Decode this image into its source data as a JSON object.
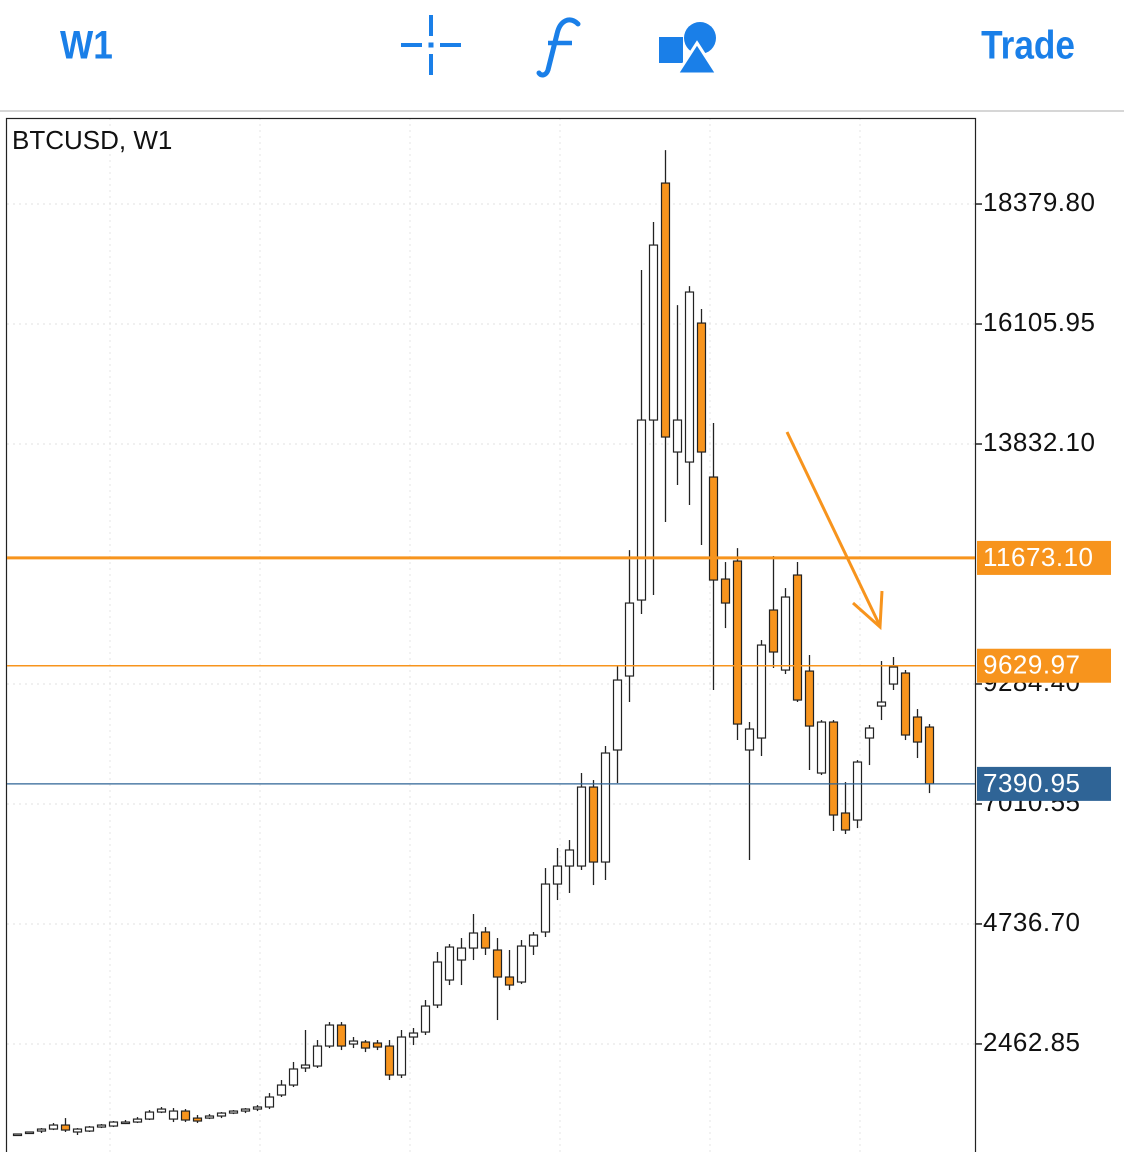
{
  "toolbar": {
    "timeframe": "W1",
    "trade": "Trade"
  },
  "chart_data": {
    "type": "candlestick",
    "title": "BTCUSD, W1",
    "ylim": [
      415,
      20010
    ],
    "yticks": [
      {
        "value": 18379.8,
        "label": "18379.80"
      },
      16105.95,
      {
        "value": 13832.1,
        "label": "13832.10"
      },
      {
        "value": 9284.4,
        "label": "9284.40"
      },
      7010.55,
      {
        "value": 4736.7,
        "label": "4736.70"
      },
      2462.85
    ],
    "grid": true,
    "up_color": "#ffffff",
    "down_color": "#f7941d",
    "open": [
      737,
      775,
      812,
      850,
      926,
      794,
      812,
      888,
      907,
      964,
      983,
      1039,
      1172,
      1039,
      1191,
      1058,
      1058,
      1097,
      1153,
      1191,
      1229,
      1268,
      1495,
      1684,
      2007,
      2044,
      2423,
      2821,
      2461,
      2499,
      2480,
      2423,
      1874,
      2594,
      2688,
      3200,
      3674,
      4053,
      4280,
      4584,
      4243,
      3731,
      3636,
      4318,
      4584,
      5493,
      5834,
      5834,
      7331,
      5910,
      8033,
      9435,
      10875,
      14286,
      18777,
      13680,
      13490,
      16124,
      13206,
      11273,
      11614,
      8033,
      8260,
      10686,
      9548,
      11349,
      9529,
      7597,
      8563,
      6839,
      6706,
      8260,
      8866,
      9283,
      9492,
      8658,
      8468
    ],
    "high": [
      756,
      794,
      869,
      964,
      1058,
      869,
      907,
      945,
      1002,
      1021,
      1077,
      1210,
      1268,
      1248,
      1229,
      1116,
      1134,
      1172,
      1210,
      1248,
      1305,
      1532,
      1779,
      2121,
      2727,
      2537,
      2878,
      2878,
      2594,
      2537,
      2537,
      2537,
      2727,
      2765,
      3295,
      4205,
      4356,
      4470,
      4925,
      4678,
      4470,
      4243,
      4432,
      4584,
      5796,
      6176,
      6327,
      7597,
      7464,
      8108,
      9643,
      11822,
      17129,
      18038,
      19402,
      16465,
      16825,
      16390,
      14229,
      11595,
      11860,
      8563,
      10117,
      11709,
      11102,
      11595,
      9833,
      8601,
      8601,
      7426,
      7843,
      8506,
      9719,
      9795,
      9549,
      8809,
      8525
    ],
    "low": [
      718,
      756,
      775,
      831,
      794,
      737,
      794,
      869,
      888,
      945,
      964,
      1021,
      1153,
      983,
      983,
      964,
      1039,
      1058,
      1134,
      1153,
      1191,
      1229,
      1457,
      1646,
      1931,
      2007,
      2385,
      2347,
      2385,
      2309,
      2347,
      1779,
      1817,
      2442,
      2632,
      3143,
      3579,
      3579,
      4053,
      4148,
      2916,
      3484,
      3598,
      4148,
      4489,
      5190,
      5323,
      5759,
      5474,
      5569,
      7407,
      8942,
      10610,
      10970,
      12353,
      13054,
      12675,
      11917,
      9170,
      10344,
      8222,
      5948,
      7919,
      9587,
      9473,
      8942,
      7654,
      7559,
      6498,
      6441,
      6554,
      7748,
      8601,
      9170,
      8222,
      7881,
      7217
    ],
    "close": [
      756,
      794,
      850,
      926,
      831,
      850,
      888,
      926,
      983,
      983,
      1039,
      1172,
      1229,
      1191,
      1021,
      1002,
      1097,
      1153,
      1191,
      1229,
      1268,
      1457,
      1684,
      1988,
      2063,
      2423,
      2821,
      2423,
      2518,
      2385,
      2404,
      1874,
      2594,
      2670,
      3181,
      4015,
      4299,
      4280,
      4565,
      4280,
      3731,
      3579,
      4318,
      4527,
      5493,
      5834,
      6138,
      7331,
      5910,
      7976,
      9359,
      10818,
      14286,
      17602,
      13964,
      14286,
      16712,
      13680,
      11254,
      10818,
      8525,
      8431,
      10022,
      9890,
      10932,
      8980,
      8487,
      8563,
      6801,
      6517,
      7805,
      8450,
      8942,
      9605,
      8317,
      8184,
      7390.95
    ],
    "price_lines": [
      {
        "value": 11673.1,
        "label": "11673.10",
        "color": "#f7941d"
      },
      {
        "value": 9629.97,
        "color": "#f7941d"
      },
      {
        "value": 7390.95,
        "color": "#2f6496"
      }
    ]
  }
}
